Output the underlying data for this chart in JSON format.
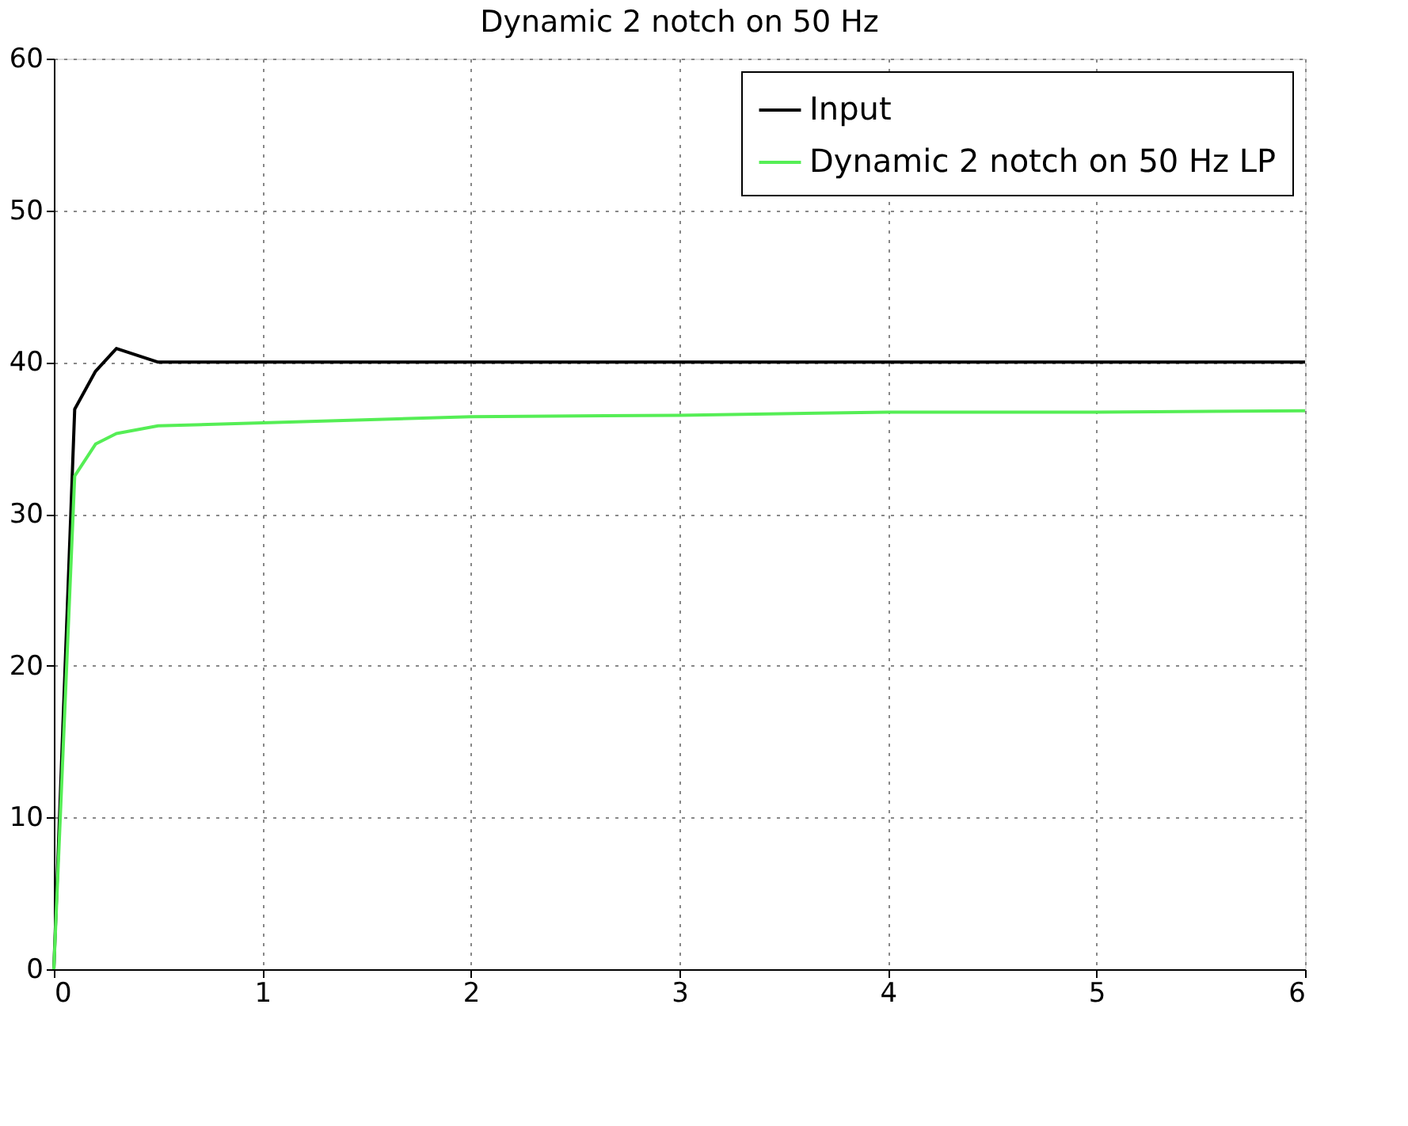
{
  "chart_data": {
    "type": "line",
    "title": "Dynamic 2 notch on 50 Hz",
    "series": [
      {
        "name": "Input",
        "color": "#000000",
        "x": [
          0,
          0.1,
          0.2,
          0.3,
          0.5,
          1,
          2,
          3,
          4,
          5,
          6
        ],
        "values": [
          0,
          36.9,
          39.4,
          40.9,
          40,
          40,
          40,
          40,
          40,
          40,
          40
        ]
      },
      {
        "name": "Dynamic 2 notch on 50 Hz LP",
        "color": "#55ee55",
        "x": [
          0,
          0.1,
          0.2,
          0.3,
          0.5,
          1,
          2,
          3,
          4,
          5,
          6
        ],
        "values": [
          0,
          32.5,
          34.6,
          35.3,
          35.8,
          36.0,
          36.4,
          36.5,
          36.7,
          36.7,
          36.8
        ]
      }
    ],
    "xlim": [
      0,
      6
    ],
    "xticks": [
      0,
      1,
      2,
      3,
      4,
      5,
      6
    ],
    "ylim": [
      0,
      60
    ],
    "yticks": [
      0,
      10,
      20,
      30,
      40,
      50,
      60
    ],
    "grid": true,
    "legend": "top right",
    "marker": "none",
    "line_style": "solid"
  }
}
